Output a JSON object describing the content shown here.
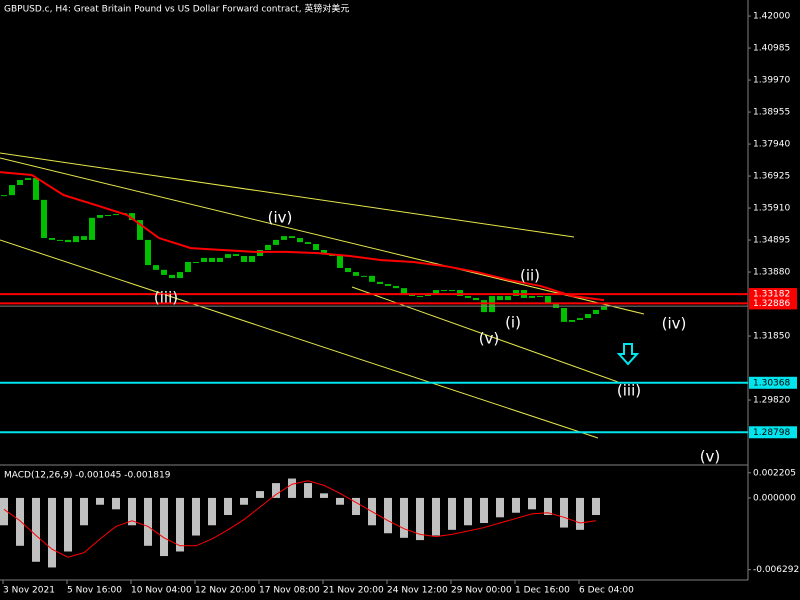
{
  "chart_data": [
    {
      "type": "price",
      "title": "GBPUSD.c, H4:  Great Britain Pound vs US Dollar Forward contract, 英镑对美元",
      "ylim": [
        1.2776,
        1.4251
      ],
      "yticks": [
        {
          "value": 1.42,
          "label": "1.42000"
        },
        {
          "value": 1.40985,
          "label": "1.40985"
        },
        {
          "value": 1.3997,
          "label": "1.39970"
        },
        {
          "value": 1.38955,
          "label": "1.38955"
        },
        {
          "value": 1.3794,
          "label": "1.37940"
        },
        {
          "value": 1.36925,
          "label": "1.36925"
        },
        {
          "value": 1.3591,
          "label": "1.35910"
        },
        {
          "value": 1.34895,
          "label": "1.34895"
        },
        {
          "value": 1.3388,
          "label": "1.33880"
        },
        {
          "value": 1.3185,
          "label": "1.31850"
        },
        {
          "value": 1.2982,
          "label": "1.29820"
        }
      ],
      "close": {
        "color": "#00c000",
        "values": [
          1.3632,
          1.3664,
          1.368,
          1.3686,
          1.3617,
          1.3496,
          1.349,
          1.349,
          1.3483,
          1.3502,
          1.349,
          1.356,
          1.3569,
          1.3569,
          1.3572,
          1.3575,
          1.3553,
          1.349,
          1.341,
          1.3395,
          1.3379,
          1.3369,
          1.3388,
          1.342,
          1.342,
          1.3433,
          1.342,
          1.3433,
          1.3445,
          1.3439,
          1.342,
          1.3439,
          1.3458,
          1.3474,
          1.349,
          1.3502,
          1.3496,
          1.3483,
          1.3477,
          1.3458,
          1.3445,
          1.3439,
          1.3401,
          1.3388,
          1.3376,
          1.3376,
          1.3357,
          1.335,
          1.3344,
          1.3337,
          1.3318,
          1.3312,
          1.3312,
          1.3318,
          1.3331,
          1.3331,
          1.3331,
          1.3312,
          1.3306,
          1.3299,
          1.3261,
          1.3312,
          1.3299,
          1.3312,
          1.3331,
          1.3306,
          1.3312,
          1.3312,
          1.3287,
          1.3274,
          1.323,
          1.3236,
          1.3242,
          1.3255,
          1.3268,
          1.328
        ]
      },
      "ma": {
        "color": "#ff0000",
        "values": [
          1.3705,
          1.3696,
          1.3632,
          1.3601,
          1.3569,
          1.3496,
          1.3464,
          1.3458,
          1.3452,
          1.3452,
          1.3448,
          1.3439,
          1.3426,
          1.342,
          1.3407,
          1.3388,
          1.3363,
          1.3344,
          1.3312,
          1.3299
        ]
      },
      "levels": [
        {
          "value": 1.33182,
          "label": "1.33182",
          "color": "#ff0000"
        },
        {
          "value": 1.32886,
          "label": "1.32886",
          "color": "#ff0000"
        },
        {
          "value": 1.30368,
          "label": "1.30368",
          "color": "#00e5ee"
        },
        {
          "value": 1.28798,
          "label": "1.28798",
          "color": "#00e5ee"
        }
      ],
      "annotations": [
        "(iv)",
        "(iii)",
        "(ii)",
        "(v)",
        "(i)",
        "(iv)",
        "(iii)",
        "(v)"
      ],
      "time_labels": [
        "3 Nov 2021",
        "5 Nov 16:00",
        "10 Nov 04:00",
        "12 Nov 20:00",
        "17 Nov 08:00",
        "21 Nov 20:00",
        "24 Nov 12:00",
        "29 Nov 00:00",
        "1 Dec 16:00",
        "6 Dec 04:00"
      ]
    },
    {
      "type": "macd",
      "label": "MACD(12,26,9) -0.001045 -0.001819",
      "ylim": [
        -0.0072,
        0.0028
      ],
      "yticks": [
        {
          "value": 0.002205,
          "label": "0.002205"
        },
        {
          "value": 0,
          "label": "0.000000"
        },
        {
          "value": -0.006292,
          "label": "-0.006292"
        }
      ],
      "histogram": {
        "color": "#c0c0c0",
        "values": [
          -0.0024,
          -0.0042,
          -0.0056,
          -0.0061,
          -0.0047,
          -0.0024,
          -0.0006,
          -0.001,
          -0.0024,
          -0.0042,
          -0.0051,
          -0.0047,
          -0.0033,
          -0.0024,
          -0.0015,
          -0.0006,
          0.0006,
          0.0013,
          0.0017,
          0.0013,
          0.0004,
          -0.0006,
          -0.0015,
          -0.0024,
          -0.0031,
          -0.0035,
          -0.0037,
          -0.0033,
          -0.0028,
          -0.0024,
          -0.0022,
          -0.0017,
          -0.0013,
          -0.001,
          -0.0015,
          -0.0026,
          -0.0028,
          -0.0015
        ]
      },
      "signal": {
        "color": "#ff0000",
        "values": [
          -0.001,
          -0.002,
          -0.0033,
          -0.0045,
          -0.0052,
          -0.0048,
          -0.0036,
          -0.0025,
          -0.002,
          -0.0025,
          -0.0035,
          -0.0042,
          -0.0042,
          -0.0036,
          -0.0028,
          -0.0019,
          -0.0008,
          0.0003,
          0.0012,
          0.0015,
          0.0011,
          0.0004,
          -0.0004,
          -0.0012,
          -0.002,
          -0.0027,
          -0.0032,
          -0.0034,
          -0.0032,
          -0.0029,
          -0.0026,
          -0.0022,
          -0.0018,
          -0.0014,
          -0.0013,
          -0.0017,
          -0.0022,
          -0.002
        ]
      }
    }
  ]
}
